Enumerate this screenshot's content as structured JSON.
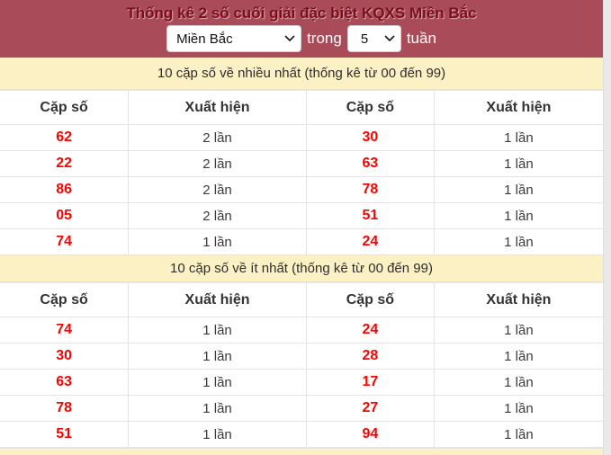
{
  "header": {
    "title": "Thống kê 2 số cuối giải đặc biệt KQXS Miền Bắc",
    "region_select": {
      "value": "Miền Bắc"
    },
    "between_label": "trong",
    "weeks_select": {
      "value": "5"
    },
    "after_label": "tuần"
  },
  "sections": [
    {
      "title": "10 cặp số về nhiều nhất (thống kê từ 00 đến 99)",
      "columns": [
        "Cặp số",
        "Xuất hiện",
        "Cặp số",
        "Xuất hiện"
      ],
      "rows": [
        [
          "62",
          "2 lần",
          "30",
          "1 lần"
        ],
        [
          "22",
          "2 lần",
          "63",
          "1 lần"
        ],
        [
          "86",
          "2 lần",
          "78",
          "1 lần"
        ],
        [
          "05",
          "2 lần",
          "51",
          "1 lần"
        ],
        [
          "74",
          "1 lần",
          "24",
          "1 lần"
        ]
      ]
    },
    {
      "title": "10 cặp số về ít nhất (thống kê từ 00 đến 99)",
      "columns": [
        "Cặp số",
        "Xuất hiện",
        "Cặp số",
        "Xuất hiện"
      ],
      "rows": [
        [
          "74",
          "1 lần",
          "24",
          "1 lần"
        ],
        [
          "30",
          "1 lần",
          "28",
          "1 lần"
        ],
        [
          "63",
          "1 lần",
          "17",
          "1 lần"
        ],
        [
          "78",
          "1 lần",
          "27",
          "1 lần"
        ],
        [
          "51",
          "1 lần",
          "94",
          "1 lần"
        ]
      ]
    }
  ],
  "colors": {
    "header_bg": "#a94b58",
    "title_text": "#7d0d1d",
    "section_bg": "#fcf0c5",
    "pair_number": "#ff0000",
    "scroll_strip": "#e9e9e9"
  }
}
